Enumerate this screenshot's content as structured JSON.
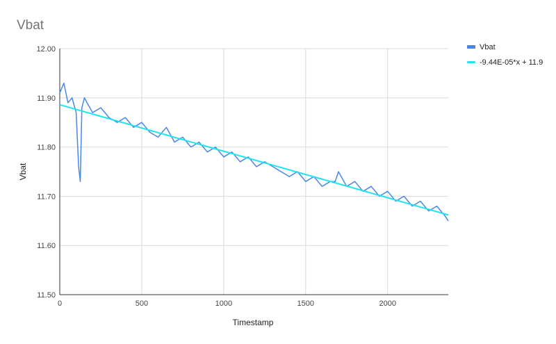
{
  "chart_data": {
    "type": "line",
    "title": "Vbat",
    "xlabel": "Timestamp",
    "ylabel": "Vbat",
    "xlim": [
      0,
      2370
    ],
    "ylim": [
      11.5,
      12.0
    ],
    "x_ticks": [
      0,
      500,
      1000,
      1500,
      2000
    ],
    "x_tick_labels": [
      "0",
      "500",
      "1000",
      "1500",
      "2000"
    ],
    "y_ticks": [
      11.5,
      11.6,
      11.7,
      11.8,
      11.9,
      12.0
    ],
    "y_tick_labels": [
      "11.50",
      "11.60",
      "11.70",
      "11.80",
      "11.90",
      "12.00"
    ],
    "grid": true,
    "legend_position": "right",
    "colors": {
      "series": "#4a86e8",
      "trend": "#20e3ef"
    },
    "series": [
      {
        "name": "Vbat",
        "x": [
          0,
          25,
          50,
          75,
          100,
          115,
          125,
          135,
          150,
          200,
          250,
          300,
          350,
          400,
          450,
          500,
          550,
          600,
          650,
          700,
          750,
          800,
          850,
          900,
          950,
          1000,
          1050,
          1100,
          1150,
          1200,
          1250,
          1300,
          1350,
          1400,
          1450,
          1500,
          1550,
          1600,
          1650,
          1680,
          1700,
          1750,
          1800,
          1850,
          1900,
          1950,
          2000,
          2050,
          2100,
          2150,
          2200,
          2250,
          2300,
          2350,
          2370
        ],
        "y": [
          11.91,
          11.93,
          11.89,
          11.9,
          11.87,
          11.76,
          11.73,
          11.88,
          11.9,
          11.87,
          11.88,
          11.86,
          11.85,
          11.86,
          11.84,
          11.85,
          11.83,
          11.82,
          11.84,
          11.81,
          11.82,
          11.8,
          11.81,
          11.79,
          11.8,
          11.78,
          11.79,
          11.77,
          11.78,
          11.76,
          11.77,
          11.76,
          11.75,
          11.74,
          11.75,
          11.73,
          11.74,
          11.72,
          11.73,
          11.73,
          11.75,
          11.72,
          11.73,
          11.71,
          11.72,
          11.7,
          11.71,
          11.69,
          11.7,
          11.68,
          11.69,
          11.67,
          11.68,
          11.66,
          11.65
        ]
      },
      {
        "name": "-9.44E-05*x + 11.9",
        "x": [
          0,
          2370
        ],
        "y": [
          11.886,
          11.662
        ]
      }
    ]
  }
}
